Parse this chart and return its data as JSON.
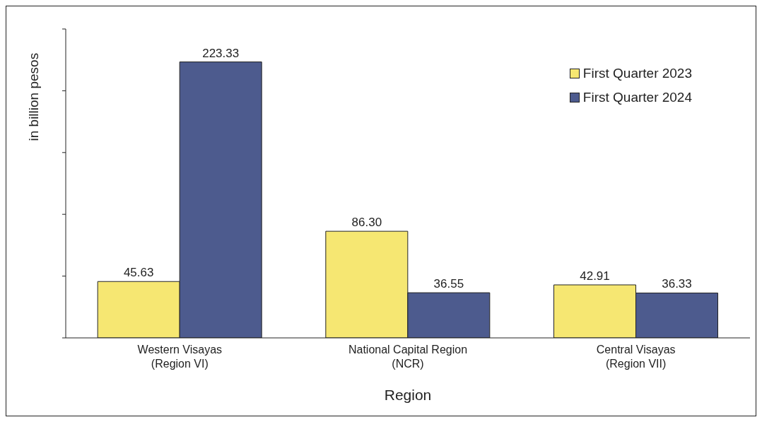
{
  "chart_data": {
    "type": "bar",
    "xlabel": "Region",
    "ylabel": "in billion pesos",
    "categories": [
      "Western Visayas (Region VI)",
      "National Capital Region (NCR)",
      "Central Visayas (Region VII)"
    ],
    "series": [
      {
        "name": "First Quarter 2023",
        "color": "#f6e772",
        "values": [
          45.63,
          86.3,
          42.91
        ],
        "value_labels": [
          "45.63",
          "86.30",
          "42.91"
        ]
      },
      {
        "name": "First Quarter 2024",
        "color": "#4d5b8e",
        "values": [
          223.33,
          36.55,
          36.33
        ],
        "value_labels": [
          "223.33",
          "36.55",
          "36.33"
        ]
      }
    ],
    "ylim": [
      0,
      250
    ],
    "yticks": [
      {
        "value": 0,
        "label": null
      },
      {
        "value": 50,
        "label": null
      },
      {
        "value": 100,
        "label": null
      },
      {
        "value": 150,
        "label": null
      },
      {
        "value": 200,
        "label": null
      },
      {
        "value": 250,
        "label": null
      }
    ],
    "tick_labels": "x",
    "legend": "top right",
    "grid": false
  }
}
